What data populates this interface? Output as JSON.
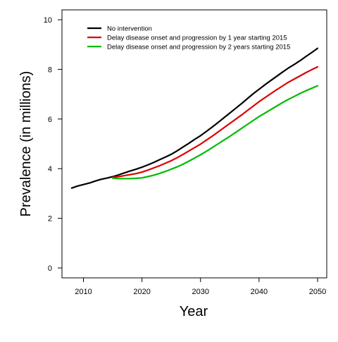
{
  "chart_data": {
    "type": "line",
    "title": "",
    "xlabel": "Year",
    "ylabel": "Prevalence (in millions)",
    "xlim": [
      2008,
      2050
    ],
    "ylim": [
      0,
      10
    ],
    "xticks": [
      2010,
      2020,
      2030,
      2040,
      2050
    ],
    "yticks": [
      0,
      2,
      4,
      6,
      8,
      10
    ],
    "grid": false,
    "legend_position": "top-left",
    "series": [
      {
        "name": "No intervention",
        "color": "#000000",
        "points": [
          [
            2008,
            3.22
          ],
          [
            2009,
            3.3
          ],
          [
            2010,
            3.36
          ],
          [
            2011,
            3.42
          ],
          [
            2012,
            3.5
          ],
          [
            2013,
            3.57
          ],
          [
            2014,
            3.62
          ],
          [
            2015,
            3.68
          ],
          [
            2016,
            3.75
          ],
          [
            2017,
            3.83
          ],
          [
            2018,
            3.91
          ],
          [
            2019,
            3.98
          ],
          [
            2020,
            4.06
          ],
          [
            2021,
            4.15
          ],
          [
            2022,
            4.25
          ],
          [
            2023,
            4.36
          ],
          [
            2024,
            4.47
          ],
          [
            2025,
            4.58
          ],
          [
            2026,
            4.72
          ],
          [
            2027,
            4.87
          ],
          [
            2028,
            5.02
          ],
          [
            2029,
            5.18
          ],
          [
            2030,
            5.33
          ],
          [
            2031,
            5.5
          ],
          [
            2032,
            5.68
          ],
          [
            2033,
            5.86
          ],
          [
            2034,
            6.05
          ],
          [
            2035,
            6.24
          ],
          [
            2036,
            6.43
          ],
          [
            2037,
            6.62
          ],
          [
            2038,
            6.82
          ],
          [
            2039,
            7.02
          ],
          [
            2040,
            7.2
          ],
          [
            2041,
            7.38
          ],
          [
            2042,
            7.55
          ],
          [
            2043,
            7.72
          ],
          [
            2044,
            7.89
          ],
          [
            2045,
            8.05
          ],
          [
            2046,
            8.2
          ],
          [
            2047,
            8.35
          ],
          [
            2048,
            8.52
          ],
          [
            2049,
            8.68
          ],
          [
            2050,
            8.85
          ]
        ]
      },
      {
        "name": "Delay disease onset and progression by 1 year starting 2015",
        "color": "#dd0000",
        "points": [
          [
            2015,
            3.65
          ],
          [
            2016,
            3.68
          ],
          [
            2017,
            3.72
          ],
          [
            2018,
            3.76
          ],
          [
            2019,
            3.8
          ],
          [
            2020,
            3.86
          ],
          [
            2021,
            3.94
          ],
          [
            2022,
            4.03
          ],
          [
            2023,
            4.12
          ],
          [
            2024,
            4.22
          ],
          [
            2025,
            4.32
          ],
          [
            2026,
            4.44
          ],
          [
            2027,
            4.57
          ],
          [
            2028,
            4.71
          ],
          [
            2029,
            4.85
          ],
          [
            2030,
            4.99
          ],
          [
            2031,
            5.15
          ],
          [
            2032,
            5.31
          ],
          [
            2033,
            5.48
          ],
          [
            2034,
            5.65
          ],
          [
            2035,
            5.82
          ],
          [
            2036,
            5.99
          ],
          [
            2037,
            6.16
          ],
          [
            2038,
            6.34
          ],
          [
            2039,
            6.52
          ],
          [
            2040,
            6.7
          ],
          [
            2041,
            6.86
          ],
          [
            2042,
            7.02
          ],
          [
            2043,
            7.18
          ],
          [
            2044,
            7.33
          ],
          [
            2045,
            7.48
          ],
          [
            2046,
            7.61
          ],
          [
            2047,
            7.74
          ],
          [
            2048,
            7.87
          ],
          [
            2049,
            7.99
          ],
          [
            2050,
            8.1
          ]
        ]
      },
      {
        "name": "Delay disease onset and progression by 2 years starting 2015",
        "color": "#00bb00",
        "points": [
          [
            2015,
            3.62
          ],
          [
            2016,
            3.6
          ],
          [
            2017,
            3.6
          ],
          [
            2018,
            3.6
          ],
          [
            2019,
            3.61
          ],
          [
            2020,
            3.63
          ],
          [
            2021,
            3.68
          ],
          [
            2022,
            3.74
          ],
          [
            2023,
            3.81
          ],
          [
            2024,
            3.89
          ],
          [
            2025,
            3.98
          ],
          [
            2026,
            4.07
          ],
          [
            2027,
            4.18
          ],
          [
            2028,
            4.3
          ],
          [
            2029,
            4.43
          ],
          [
            2030,
            4.56
          ],
          [
            2031,
            4.7
          ],
          [
            2032,
            4.85
          ],
          [
            2033,
            5.0
          ],
          [
            2034,
            5.15
          ],
          [
            2035,
            5.3
          ],
          [
            2036,
            5.46
          ],
          [
            2037,
            5.62
          ],
          [
            2038,
            5.78
          ],
          [
            2039,
            5.94
          ],
          [
            2040,
            6.1
          ],
          [
            2041,
            6.24
          ],
          [
            2042,
            6.38
          ],
          [
            2043,
            6.52
          ],
          [
            2044,
            6.66
          ],
          [
            2045,
            6.79
          ],
          [
            2046,
            6.91
          ],
          [
            2047,
            7.03
          ],
          [
            2048,
            7.14
          ],
          [
            2049,
            7.24
          ],
          [
            2050,
            7.34
          ]
        ]
      }
    ]
  }
}
